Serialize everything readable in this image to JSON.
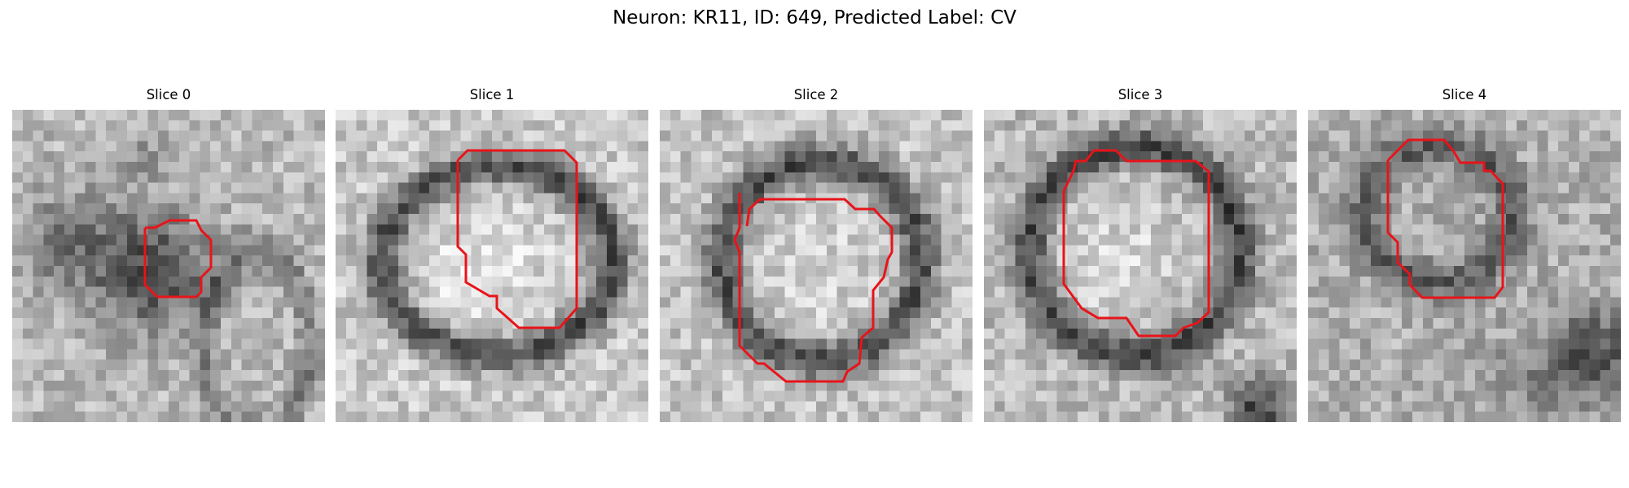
{
  "figure": {
    "title": "Neuron: KR11, ID: 649, Predicted Label: CV"
  },
  "contour_color": "#e8141a",
  "slices": [
    {
      "title": "Slice 0"
    },
    {
      "title": "Slice 1"
    },
    {
      "title": "Slice 2"
    },
    {
      "title": "Slice 3"
    },
    {
      "title": "Slice 4"
    }
  ]
}
